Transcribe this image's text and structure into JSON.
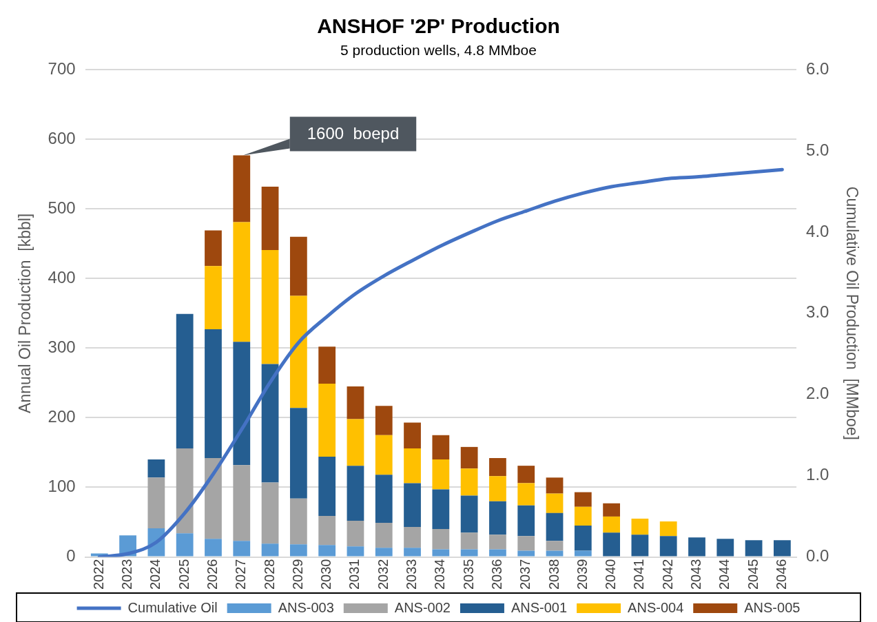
{
  "chart_data": {
    "type": "bar",
    "title": "ANSHOF '2P' Production",
    "subtitle": "5 production wells, 4.8 MMboe",
    "ylabel": "Annual Oil Production  [kbbl]",
    "y2label": "Cumulative Oil Production  [MMboe]",
    "categories": [
      "2022",
      "2023",
      "2024",
      "2025",
      "2026",
      "2027",
      "2028",
      "2029",
      "2030",
      "2031",
      "2032",
      "2033",
      "2034",
      "2035",
      "2036",
      "2037",
      "2038",
      "2039",
      "2040",
      "2041",
      "2042",
      "2043",
      "2044",
      "2045",
      "2046"
    ],
    "stacked": true,
    "series": [
      {
        "name": "ANS-003",
        "color": "#5b9bd5",
        "values": [
          5,
          31,
          41,
          34,
          26,
          23,
          19,
          18,
          17,
          15,
          13,
          13,
          11,
          11,
          11,
          9,
          9,
          9,
          null,
          null,
          null,
          null,
          null,
          null,
          null
        ]
      },
      {
        "name": "ANS-002",
        "color": "#a5a5a5",
        "values": [
          null,
          null,
          73,
          122,
          116,
          109,
          88,
          66,
          42,
          37,
          36,
          30,
          29,
          24,
          21,
          21,
          14,
          null,
          null,
          null,
          null,
          null,
          null,
          null,
          null
        ]
      },
      {
        "name": "ANS-001",
        "color": "#255e91",
        "values": [
          null,
          null,
          26,
          193,
          185,
          177,
          170,
          130,
          85,
          79,
          69,
          63,
          57,
          53,
          48,
          44,
          40,
          36,
          35,
          32,
          30,
          28,
          26,
          24,
          24
        ]
      },
      {
        "name": "ANS-004",
        "color": "#ffc000",
        "values": [
          null,
          null,
          null,
          null,
          91,
          172,
          164,
          161,
          105,
          67,
          57,
          50,
          43,
          39,
          36,
          32,
          28,
          27,
          23,
          23,
          21,
          null,
          null,
          null,
          null
        ]
      },
      {
        "name": "ANS-005",
        "color": "#9e480e",
        "values": [
          null,
          null,
          null,
          null,
          51,
          96,
          91,
          85,
          53,
          47,
          42,
          37,
          35,
          31,
          26,
          25,
          23,
          21,
          19,
          null,
          null,
          null,
          null,
          null,
          null
        ]
      },
      {
        "name": "Cumulative Oil",
        "type": "line",
        "axis": "y2",
        "color": "#4472c4",
        "values": [
          0.0,
          0.04,
          0.18,
          0.54,
          1.02,
          1.57,
          2.15,
          2.64,
          2.96,
          3.24,
          3.46,
          3.65,
          3.83,
          3.99,
          4.14,
          4.26,
          4.38,
          4.48,
          4.56,
          4.61,
          4.66,
          4.68,
          4.71,
          4.74,
          4.77
        ]
      }
    ],
    "ylim": [
      0,
      700
    ],
    "yticks": [
      0,
      100,
      200,
      300,
      400,
      500,
      600,
      700
    ],
    "y2lim": [
      0,
      6
    ],
    "y2ticks": [
      {
        "value": 0,
        "label": "0.0"
      },
      {
        "value": 1,
        "label": "1.0"
      },
      {
        "value": 2,
        "label": "2.0"
      },
      {
        "value": 3,
        "label": "3.0"
      },
      {
        "value": 4,
        "label": "4.0"
      },
      {
        "value": 5,
        "label": "5.0"
      },
      {
        "value": 6,
        "label": "6.0"
      }
    ],
    "grid": "y",
    "legend": "bottom",
    "marker": "none",
    "annotations": [
      {
        "text": "1600  boepd",
        "x": "2027",
        "y": 577
      }
    ]
  }
}
